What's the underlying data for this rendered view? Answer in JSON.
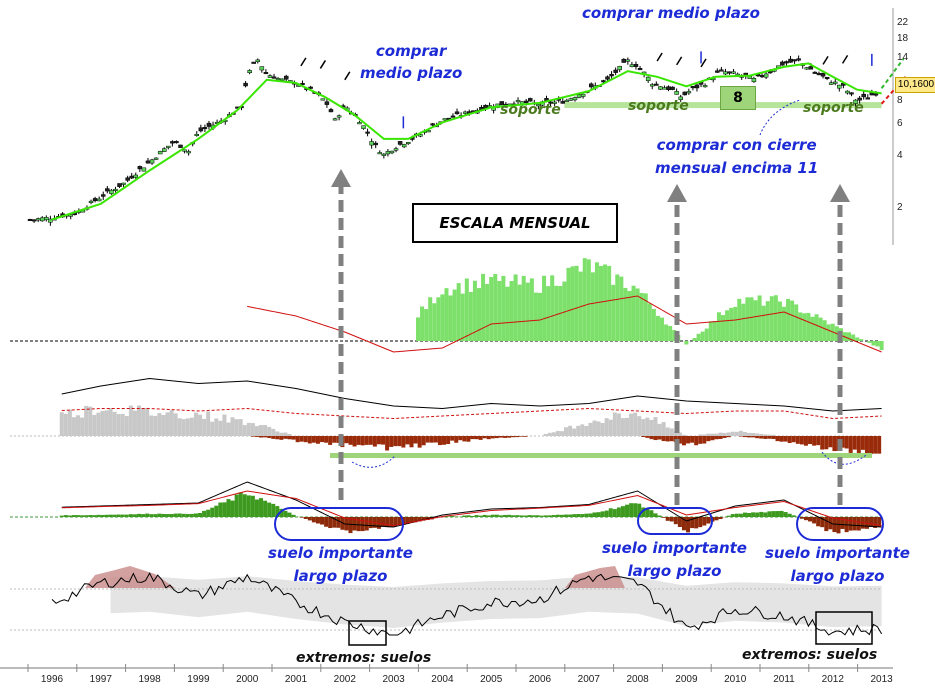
{
  "title_box": "ESCALA MENSUAL",
  "price_label": "10,1600",
  "badge": "8",
  "annotations": {
    "comprar_1_line1": "comprar",
    "comprar_1_line2": "medio plazo",
    "comprar_2": "comprar medio plazo",
    "soporte_1": "soporte",
    "soporte_2": "soporte",
    "soporte_3": "soporte",
    "cierre_line1": "comprar con cierre",
    "cierre_line2": "mensual encima 11",
    "suelo_1_line1": "suelo importante",
    "suelo_1_line2": "largo plazo",
    "suelo_2_line1": "suelo importante",
    "suelo_2_line2": "largo plazo",
    "suelo_3_line1": "suelo importante",
    "suelo_3_line2": "largo plazo",
    "extremos_1": "extremos: suelos",
    "extremos_2": "extremos: suelos"
  },
  "colors": {
    "ma_green": "#39e600",
    "hist_green": "#7de06a",
    "hist_red": "#9a2b0a",
    "macd_red": "#8c2a0a",
    "suelo_ellipse": "#1c2bd6",
    "arrow_gray": "#808080",
    "band_gray": "#e4e4e4",
    "band_pink": "#c98a8a"
  },
  "chart_data": [
    {
      "type": "candlestick",
      "scale": "log",
      "x_ticks": [
        "1996",
        "1997",
        "1998",
        "1999",
        "2000",
        "2001",
        "2002",
        "2003",
        "2004",
        "2005",
        "2006",
        "2007",
        "2008",
        "2009",
        "2010",
        "2011",
        "2012",
        "2013"
      ],
      "y_ticks": [
        "22",
        "18",
        "14",
        "10",
        "8",
        "6",
        "4",
        "2"
      ],
      "ylim": [
        1.2,
        26
      ],
      "close": [
        {
          "x": 1995.6,
          "y": 1.6
        },
        {
          "x": 1996.0,
          "y": 1.65
        },
        {
          "x": 1996.5,
          "y": 1.75
        },
        {
          "x": 1997.0,
          "y": 2.2
        },
        {
          "x": 1997.5,
          "y": 2.7
        },
        {
          "x": 1998.0,
          "y": 3.6
        },
        {
          "x": 1998.5,
          "y": 4.8
        },
        {
          "x": 1998.8,
          "y": 4.2
        },
        {
          "x": 1999.0,
          "y": 5.5
        },
        {
          "x": 1999.5,
          "y": 6.5
        },
        {
          "x": 1999.9,
          "y": 8.0
        },
        {
          "x": 2000.0,
          "y": 12.0
        },
        {
          "x": 2000.2,
          "y": 15.5
        },
        {
          "x": 2000.4,
          "y": 12.5
        },
        {
          "x": 2000.7,
          "y": 11.5
        },
        {
          "x": 2001.0,
          "y": 11.0
        },
        {
          "x": 2001.3,
          "y": 10.0
        },
        {
          "x": 2001.6,
          "y": 8.5
        },
        {
          "x": 2001.8,
          "y": 6.5
        },
        {
          "x": 2002.0,
          "y": 8.0
        },
        {
          "x": 2002.3,
          "y": 6.5
        },
        {
          "x": 2002.6,
          "y": 4.6
        },
        {
          "x": 2002.8,
          "y": 4.0
        },
        {
          "x": 2003.0,
          "y": 4.4
        },
        {
          "x": 2003.5,
          "y": 5.2
        },
        {
          "x": 2004.0,
          "y": 6.5
        },
        {
          "x": 2004.5,
          "y": 7.2
        },
        {
          "x": 2005.0,
          "y": 8.0
        },
        {
          "x": 2005.5,
          "y": 8.4
        },
        {
          "x": 2006.0,
          "y": 8.2
        },
        {
          "x": 2006.5,
          "y": 8.5
        },
        {
          "x": 2007.0,
          "y": 10.0
        },
        {
          "x": 2007.4,
          "y": 11.5
        },
        {
          "x": 2007.8,
          "y": 15.0
        },
        {
          "x": 2008.0,
          "y": 14.0
        },
        {
          "x": 2008.3,
          "y": 11.0
        },
        {
          "x": 2008.7,
          "y": 10.0
        },
        {
          "x": 2008.9,
          "y": 9.0
        },
        {
          "x": 2009.1,
          "y": 10.0
        },
        {
          "x": 2009.4,
          "y": 11.0
        },
        {
          "x": 2009.7,
          "y": 13.0
        },
        {
          "x": 2010.0,
          "y": 12.5
        },
        {
          "x": 2010.4,
          "y": 11.5
        },
        {
          "x": 2010.8,
          "y": 13.5
        },
        {
          "x": 2011.0,
          "y": 14.5
        },
        {
          "x": 2011.3,
          "y": 15.0
        },
        {
          "x": 2011.6,
          "y": 13.0
        },
        {
          "x": 2011.9,
          "y": 11.5
        },
        {
          "x": 2012.2,
          "y": 10.5
        },
        {
          "x": 2012.5,
          "y": 8.5
        },
        {
          "x": 2012.8,
          "y": 9.3
        },
        {
          "x": 2013.0,
          "y": 10.16
        }
      ],
      "ma": [
        {
          "x": 1996.0,
          "y": 1.6
        },
        {
          "x": 1997.0,
          "y": 2.0
        },
        {
          "x": 1998.0,
          "y": 3.2
        },
        {
          "x": 1999.0,
          "y": 5.0
        },
        {
          "x": 1999.8,
          "y": 7.5
        },
        {
          "x": 2000.4,
          "y": 11.5
        },
        {
          "x": 2001.0,
          "y": 11.0
        },
        {
          "x": 2001.6,
          "y": 9.0
        },
        {
          "x": 2002.2,
          "y": 7.0
        },
        {
          "x": 2002.8,
          "y": 5.0
        },
        {
          "x": 2003.3,
          "y": 5.0
        },
        {
          "x": 2004.0,
          "y": 6.3
        },
        {
          "x": 2005.0,
          "y": 7.8
        },
        {
          "x": 2006.0,
          "y": 8.3
        },
        {
          "x": 2007.0,
          "y": 9.8
        },
        {
          "x": 2007.8,
          "y": 13.0
        },
        {
          "x": 2008.4,
          "y": 12.0
        },
        {
          "x": 2009.0,
          "y": 10.5
        },
        {
          "x": 2009.6,
          "y": 12.0
        },
        {
          "x": 2010.3,
          "y": 12.2
        },
        {
          "x": 2011.0,
          "y": 13.8
        },
        {
          "x": 2011.5,
          "y": 14.5
        },
        {
          "x": 2012.0,
          "y": 12.0
        },
        {
          "x": 2012.5,
          "y": 10.0
        },
        {
          "x": 2013.0,
          "y": 9.5
        }
      ]
    },
    {
      "type": "area",
      "x": [
        1996,
        1997,
        1998,
        1999,
        2000,
        2001,
        2002,
        2003,
        2004,
        2005,
        2006,
        2007,
        2008,
        2009,
        2010,
        2011,
        2012,
        2013
      ],
      "red_line": [
        0.95,
        0.9,
        0.85,
        0.75,
        0.62,
        0.5,
        0.3,
        0.05,
        0.1,
        0.4,
        0.45,
        0.65,
        0.75,
        0.4,
        0.45,
        0.55,
        0.3,
        0.05
      ],
      "histogram": [
        0,
        0,
        0,
        0,
        0,
        0,
        0,
        0,
        0.65,
        0.75,
        0.7,
        0.95,
        0.65,
        -0.05,
        0.5,
        0.5,
        0.2,
        -0.1
      ]
    },
    {
      "type": "line",
      "x": [
        1996,
        1997,
        1998,
        1999,
        2000,
        2001,
        2002,
        2003,
        2004,
        2005,
        2006,
        2007,
        2008,
        2009,
        2010,
        2011,
        2012,
        2013
      ],
      "black_line": [
        0.6,
        0.8,
        0.95,
        0.85,
        0.9,
        0.75,
        0.55,
        0.4,
        0.35,
        0.45,
        0.4,
        0.45,
        0.6,
        0.5,
        0.45,
        0.4,
        0.3,
        0.35
      ],
      "red_dashed": [
        0.3,
        0.35,
        0.35,
        0.3,
        0.35,
        0.25,
        0.2,
        0.15,
        0.2,
        0.25,
        0.3,
        0.35,
        0.3,
        0.25,
        0.3,
        0.3,
        0.15,
        0.2
      ],
      "gray_bars": [
        0.4,
        0.6,
        0.5,
        0.45,
        0.3,
        0,
        0,
        0,
        0,
        0,
        0,
        0.3,
        0.5,
        0,
        0.1,
        0,
        0,
        0
      ],
      "red_bars": [
        0,
        0,
        0,
        0,
        0,
        -0.2,
        -0.4,
        -0.5,
        -0.3,
        -0.1,
        0,
        0,
        0,
        -0.4,
        0,
        -0.2,
        -0.6,
        -0.8
      ]
    },
    {
      "type": "line",
      "x": [
        1996,
        1997,
        1998,
        1999,
        2000,
        2001,
        2002,
        2003,
        2004,
        2005,
        2006,
        2007,
        2008,
        2009,
        2010,
        2011,
        2012,
        2013
      ],
      "macd": [
        0.05,
        0.1,
        0.15,
        0.2,
        0.9,
        0.3,
        -0.5,
        -0.6,
        -0.2,
        0.0,
        0.05,
        0.15,
        0.6,
        -0.4,
        0.1,
        0.3,
        -0.5,
        -0.6
      ],
      "signal": [
        0.03,
        0.08,
        0.12,
        0.18,
        0.6,
        0.35,
        -0.3,
        -0.55,
        -0.25,
        -0.05,
        0.03,
        0.12,
        0.45,
        -0.2,
        0.05,
        0.25,
        -0.3,
        -0.55
      ]
    },
    {
      "type": "line",
      "x": [
        1996,
        1997,
        1998,
        1999,
        2000,
        2001,
        2002,
        2003,
        2004,
        2005,
        2006,
        2007,
        2008,
        2009,
        2010,
        2011,
        2012,
        2013
      ],
      "oscillator": [
        0.5,
        0.8,
        0.9,
        0.6,
        0.9,
        0.5,
        0.2,
        0.0,
        0.3,
        0.5,
        0.55,
        0.9,
        0.8,
        0.1,
        0.4,
        0.3,
        0.05,
        0.1
      ]
    }
  ]
}
